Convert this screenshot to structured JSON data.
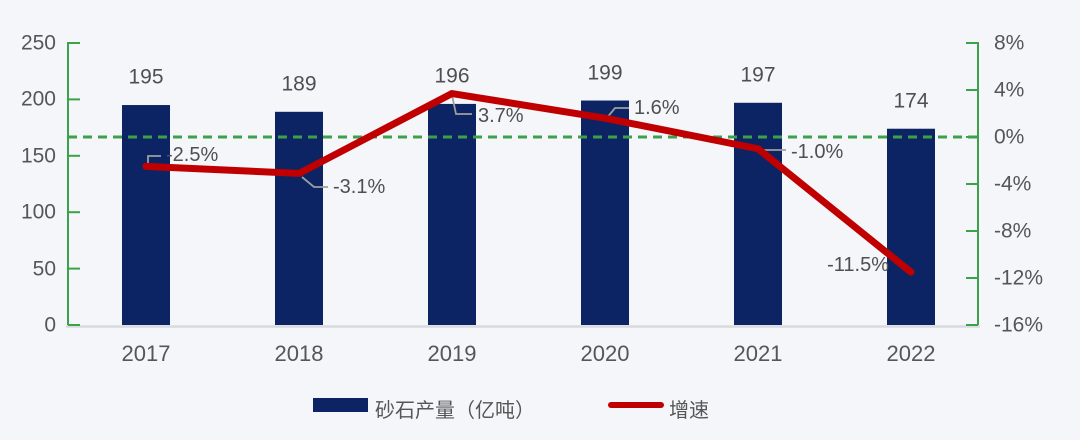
{
  "colors": {
    "bar": "#0d2464",
    "line": "#c00000",
    "axis_green": "#3da04b",
    "baseline_gray": "#d8dade",
    "leader_gray": "#9e9e9e",
    "text_gray": "#565656",
    "background": "#f4f6f9"
  },
  "chart_data": {
    "type": "bar",
    "title": "",
    "categories": [
      "2017",
      "2018",
      "2019",
      "2020",
      "2021",
      "2022"
    ],
    "series": [
      {
        "name": "砂石产量（亿吨）",
        "chart": "bar",
        "axis": "left",
        "color": "#0d2464",
        "values": [
          195,
          189,
          196,
          199,
          197,
          174
        ],
        "data_labels": [
          "195",
          "189",
          "196",
          "199",
          "197",
          "174"
        ]
      },
      {
        "name": "增速",
        "chart": "line",
        "axis": "right",
        "color": "#c00000",
        "values": [
          -2.5,
          -3.1,
          3.7,
          1.6,
          -1.0,
          -11.5
        ],
        "data_labels": [
          "-2.5%",
          "-3.1%",
          "3.7%",
          "1.6%",
          "-1.0%",
          "-11.5%"
        ]
      }
    ],
    "left_axis": {
      "min": 0,
      "max": 250,
      "ticks": [
        250,
        200,
        150,
        100,
        50,
        0
      ]
    },
    "right_axis": {
      "min": -16,
      "max": 8,
      "ticks": [
        8,
        4,
        0,
        -4,
        -8,
        -12,
        -16
      ],
      "tick_labels": [
        "8%",
        "4%",
        "0%",
        "-4%",
        "-8%",
        "-12%",
        "-16%"
      ]
    },
    "gridline": {
      "style": "dashed",
      "at_right_axis_value": 0,
      "color": "#3da04b"
    },
    "legend_position": "bottom"
  },
  "legend": {
    "bar_label": "砂石产量（亿吨）",
    "line_label": "增速"
  }
}
